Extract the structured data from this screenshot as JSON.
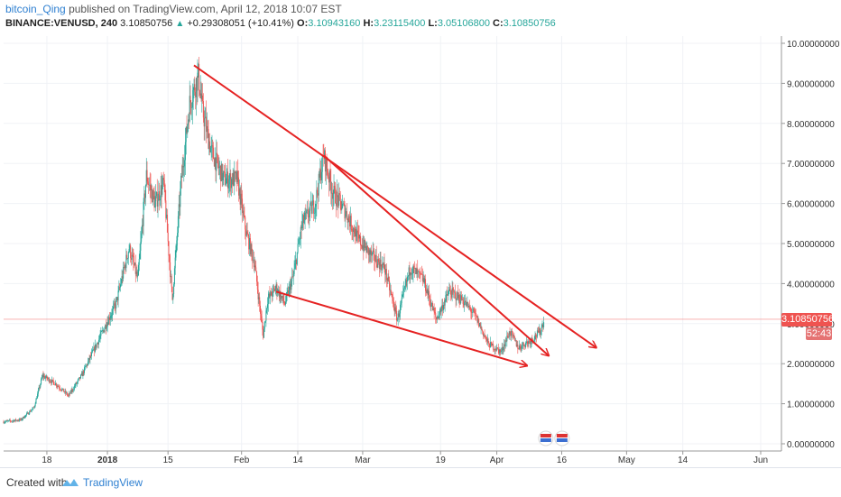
{
  "header": {
    "username": "bitcoin_Qing",
    "published_text": "published on TradingView.com, April 12, 2018 10:07 EST",
    "symbol": "BINANCE:VENUSD, 240",
    "last": "3.10850756",
    "change_arrow": "▲",
    "change": "+0.29308051 (+10.41%)",
    "o_label": "O:",
    "o": "3.10943160",
    "h_label": "H:",
    "h": "3.23115400",
    "l_label": "L:",
    "l": "3.05106800",
    "c_label": "C:",
    "c": "3.10850756"
  },
  "price_tag": "3.10850756",
  "countdown_tag": "52:43",
  "footer": {
    "created_with": "Created with",
    "brand": "TradingView"
  },
  "colors": {
    "up": "#26a69a",
    "down": "#ef5350",
    "trendline": "#e52222",
    "last_price": "#ef5350",
    "brand": "#2f80d1"
  },
  "icons": [
    "tradingview-logo-icon",
    "us-flag-event-icon"
  ],
  "chart_data": {
    "type": "candlestick",
    "title": "",
    "interval": "240",
    "ylim": [
      0,
      10
    ],
    "y_ticks": [
      "0.00000000",
      "1.00000000",
      "2.00000000",
      "3.00000000",
      "4.00000000",
      "5.00000000",
      "6.00000000",
      "7.00000000",
      "8.00000000",
      "9.00000000",
      "10.00000000"
    ],
    "x_ticks": [
      {
        "date": "2017-12-18",
        "label": "18",
        "bold": false
      },
      {
        "date": "2018-01-01",
        "label": "2018",
        "bold": true
      },
      {
        "date": "2018-01-15",
        "label": "15",
        "bold": false
      },
      {
        "date": "2018-02-01",
        "label": "Feb",
        "bold": false
      },
      {
        "date": "2018-02-14",
        "label": "14",
        "bold": false
      },
      {
        "date": "2018-03-01",
        "label": "Mar",
        "bold": false
      },
      {
        "date": "2018-03-19",
        "label": "19",
        "bold": false
      },
      {
        "date": "2018-04-01",
        "label": "Apr",
        "bold": false
      },
      {
        "date": "2018-04-16",
        "label": "16",
        "bold": false
      },
      {
        "date": "2018-05-01",
        "label": "May",
        "bold": false
      },
      {
        "date": "2018-05-14",
        "label": "14",
        "bold": false
      },
      {
        "date": "2018-06-01",
        "label": "Jun",
        "bold": false
      }
    ],
    "x_range": [
      "2017-12-08",
      "2018-06-01"
    ],
    "price_path": [
      [
        "2017-12-08",
        0.55
      ],
      [
        "2017-12-12",
        0.6
      ],
      [
        "2017-12-15",
        0.9
      ],
      [
        "2017-12-17",
        1.7
      ],
      [
        "2017-12-20",
        1.5
      ],
      [
        "2017-12-23",
        1.2
      ],
      [
        "2017-12-26",
        1.7
      ],
      [
        "2017-12-30",
        2.6
      ],
      [
        "2018-01-03",
        3.5
      ],
      [
        "2018-01-06",
        4.9
      ],
      [
        "2018-01-08",
        4.1
      ],
      [
        "2018-01-10",
        6.7
      ],
      [
        "2018-01-12",
        6.0
      ],
      [
        "2018-01-14",
        6.5
      ],
      [
        "2018-01-16",
        3.6
      ],
      [
        "2018-01-18",
        6.5
      ],
      [
        "2018-01-20",
        8.5
      ],
      [
        "2018-01-22",
        9.2
      ],
      [
        "2018-01-23",
        8.3
      ],
      [
        "2018-01-25",
        7.3
      ],
      [
        "2018-01-28",
        6.6
      ],
      [
        "2018-01-31",
        6.6
      ],
      [
        "2018-02-02",
        5.3
      ],
      [
        "2018-02-04",
        4.5
      ],
      [
        "2018-02-06",
        2.7
      ],
      [
        "2018-02-07",
        3.6
      ],
      [
        "2018-02-09",
        3.9
      ],
      [
        "2018-02-11",
        3.5
      ],
      [
        "2018-02-13",
        4.2
      ],
      [
        "2018-02-15",
        5.5
      ],
      [
        "2018-02-18",
        6.0
      ],
      [
        "2018-02-20",
        7.2
      ],
      [
        "2018-02-22",
        6.3
      ],
      [
        "2018-02-25",
        5.8
      ],
      [
        "2018-02-28",
        5.1
      ],
      [
        "2018-03-03",
        4.7
      ],
      [
        "2018-03-06",
        4.4
      ],
      [
        "2018-03-09",
        3.1
      ],
      [
        "2018-03-12",
        4.4
      ],
      [
        "2018-03-15",
        4.1
      ],
      [
        "2018-03-18",
        3.1
      ],
      [
        "2018-03-21",
        3.8
      ],
      [
        "2018-03-24",
        3.6
      ],
      [
        "2018-03-27",
        3.2
      ],
      [
        "2018-03-30",
        2.5
      ],
      [
        "2018-04-02",
        2.3
      ],
      [
        "2018-04-04",
        2.8
      ],
      [
        "2018-04-06",
        2.4
      ],
      [
        "2018-04-09",
        2.6
      ],
      [
        "2018-04-11",
        2.8
      ],
      [
        "2018-04-12",
        3.1
      ]
    ],
    "last_price": 3.10850756,
    "drawings": [
      {
        "type": "trendline",
        "start": [
          "2018-01-21",
          9.45
        ],
        "end": [
          "2018-04-24",
          2.4
        ],
        "arrow": true
      },
      {
        "type": "trendline",
        "start": [
          "2018-02-20",
          7.2
        ],
        "end": [
          "2018-04-13",
          2.2
        ],
        "arrow": true
      },
      {
        "type": "trendline",
        "start": [
          "2018-02-09",
          3.8
        ],
        "end": [
          "2018-04-08",
          1.95
        ],
        "arrow": true
      }
    ]
  }
}
